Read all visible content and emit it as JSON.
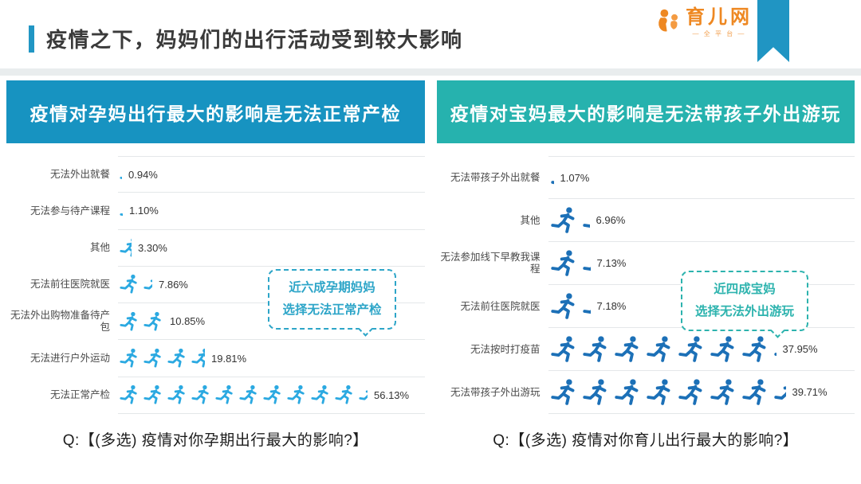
{
  "header": {
    "title": "疫情之下，妈妈们的出行活动受到较大影响",
    "logo": {
      "text": "育儿网",
      "subtitle": "— 全 平 台 —"
    }
  },
  "colors": {
    "title_accent": "#2196C4",
    "ribbon_blue": "#2095C3",
    "logo_orange": "#EE8822",
    "left_header_bg": "#1793C1",
    "right_header_bg": "#26B2AE",
    "left_icon_blue": "#2BA9E1",
    "right_icon_blue": "#1C70B7",
    "left_callout_accent": "#2DA5C8",
    "right_callout_accent": "#2DB3AE",
    "grid_line": "#E4E7E9"
  },
  "chart_data": [
    {
      "type": "pictogram-bar",
      "panel_title": "疫情对孕妈出行最大的影响是无法正常产检",
      "header_bg": "#1793C1",
      "icon": "runner-icon",
      "icon_color": "#2BA9E1",
      "accent_color": "#2DA5C8",
      "icon_unit_percent": 5.35,
      "categories": [
        "无法外出就餐",
        "无法参与待产课程",
        "其他",
        "无法前往医院就医",
        "无法外出购物准备待产包",
        "无法进行户外运动",
        "无法正常产检"
      ],
      "values": [
        0.94,
        1.1,
        3.3,
        7.86,
        10.85,
        19.81,
        56.13
      ],
      "value_labels": [
        "0.94%",
        "1.10%",
        "3.30%",
        "7.86%",
        "10.85%",
        "19.81%",
        "56.13%"
      ],
      "callout": [
        "近六成孕期妈妈",
        "选择无法正常产检"
      ],
      "question": "Q:【(多选) 疫情对你孕期出行最大的影响?】"
    },
    {
      "type": "pictogram-bar",
      "panel_title": "疫情对宝妈最大的影响是无法带孩子外出游玩",
      "header_bg": "#26B2AE",
      "icon": "runner-icon",
      "icon_color": "#1C70B7",
      "accent_color": "#2DB3AE",
      "icon_unit_percent": 5.3,
      "categories": [
        "无法带孩子外出就餐",
        "其他",
        "无法参加线下早教我课程",
        "无法前往医院就医",
        "无法按时打疫苗",
        "无法带孩子外出游玩"
      ],
      "values": [
        1.07,
        6.96,
        7.13,
        7.18,
        37.95,
        39.71
      ],
      "value_labels": [
        "1.07%",
        "6.96%",
        "7.13%",
        "7.18%",
        "37.95%",
        "39.71%"
      ],
      "callout": [
        "近四成宝妈",
        "选择无法外出游玩"
      ],
      "question": "Q:【(多选) 疫情对你育儿出行最大的影响?】"
    }
  ]
}
